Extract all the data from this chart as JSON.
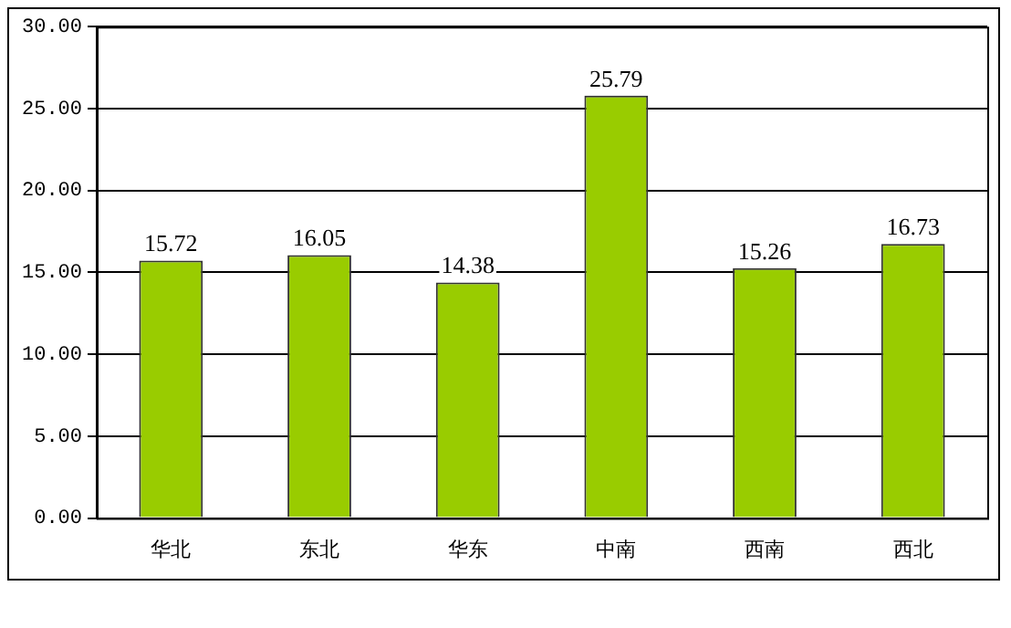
{
  "chart_data": {
    "type": "bar",
    "categories": [
      "华北",
      "东北",
      "华东",
      "中南",
      "西南",
      "西北"
    ],
    "values": [
      15.72,
      16.05,
      14.38,
      25.79,
      15.26,
      16.73
    ],
    "color": "#99cc00",
    "ylim": [
      0,
      30
    ],
    "yticks": [
      {
        "value": 0,
        "label": "0.00"
      },
      {
        "value": 5,
        "label": "5.00"
      },
      {
        "value": 10,
        "label": "10.00"
      },
      {
        "value": 15,
        "label": "15.00"
      },
      {
        "value": 20,
        "label": "20.00"
      },
      {
        "value": 25,
        "label": "25.00"
      },
      {
        "value": 30,
        "label": "30.00"
      }
    ],
    "grid": "y",
    "data_labels": true,
    "legend": false
  }
}
